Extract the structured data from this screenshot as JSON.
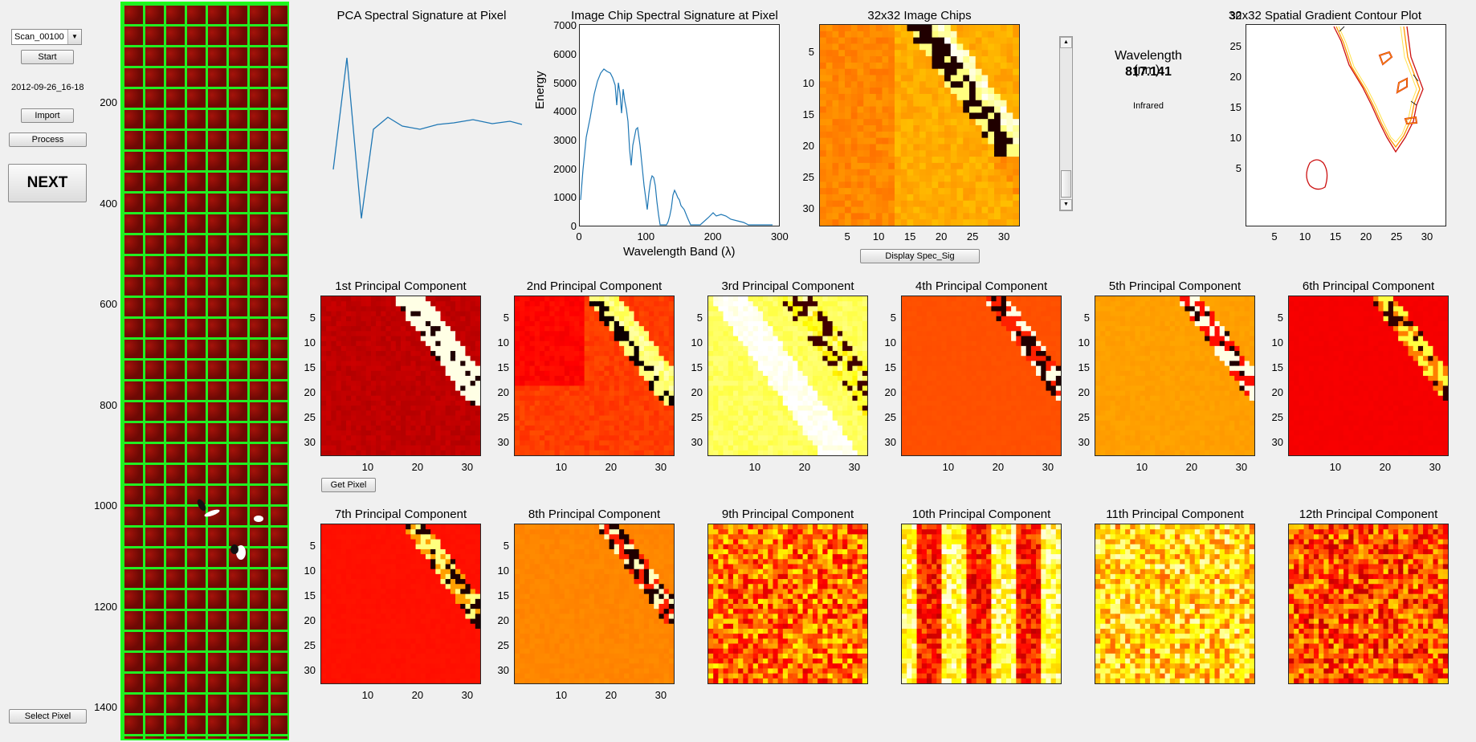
{
  "controls": {
    "scan_select": "Scan_00100",
    "start_label": "Start",
    "timestamp": "2012-09-26_16-18",
    "import_label": "Import",
    "process_label": "Process",
    "next_label": "NEXT",
    "select_pixel_label": "Select Pixel",
    "get_pixel_label": "Get Pixel",
    "display_spec_label": "Display Spec_Sig"
  },
  "scan_axis": [
    "200",
    "400",
    "600",
    "800",
    "1000",
    "1200",
    "1400"
  ],
  "titles": {
    "pca_sig": "PCA Spectral Signature at Pixel",
    "chip_sig": "Image Chip Spectral Signature at Pixel",
    "chips": "32x32 Image Chips",
    "contour": "32x32 Spatial Gradient Contour Plot"
  },
  "wavelength": {
    "label": "Wavelength (nm):",
    "value": "817.141",
    "band": "Infrared"
  },
  "chip_sig_axes": {
    "xlabel": "Wavelength Band (λ)",
    "ylabel": "Energy",
    "xticks": [
      "0",
      "100",
      "200",
      "300"
    ],
    "yticks": [
      "0",
      "1000",
      "2000",
      "3000",
      "4000",
      "5000",
      "6000",
      "7000"
    ]
  },
  "image_ticks": {
    "x": [
      "5",
      "10",
      "15",
      "20",
      "25",
      "30"
    ],
    "y": [
      "5",
      "10",
      "15",
      "20",
      "25",
      "30"
    ],
    "pc_x": [
      "10",
      "20",
      "30"
    ],
    "contour_y": [
      "5",
      "10",
      "15",
      "20",
      "25",
      "30"
    ]
  },
  "components": [
    {
      "title": "1st Principal Component"
    },
    {
      "title": "2nd Principal Component"
    },
    {
      "title": "3rd Principal Component"
    },
    {
      "title": "4th Principal Component"
    },
    {
      "title": "5th Principal Component"
    },
    {
      "title": "6th Principal Component"
    },
    {
      "title": "7th Principal Component"
    },
    {
      "title": "8th Principal Component"
    },
    {
      "title": "9th Principal Component"
    },
    {
      "title": "10th Principal Component"
    },
    {
      "title": "11th Principal Component"
    },
    {
      "title": "12th Principal Component"
    }
  ],
  "colors": {
    "accent_green": "#22ee22",
    "line_blue": "#1f77b4",
    "contour_red": "#cc1010",
    "contour_orange": "#ff9900"
  }
}
